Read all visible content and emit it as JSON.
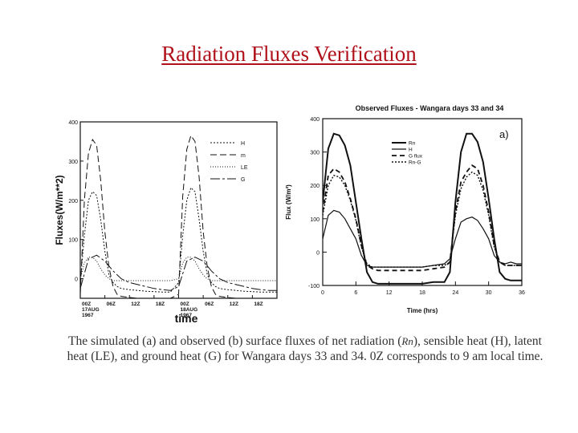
{
  "slide": {
    "title": "Radiation Fluxes Verification",
    "caption_part1": "The simulated (a) and observed (b) surface fluxes of net radiation (",
    "caption_rn": "Rn",
    "caption_part2": "), sensible heat (H), latent heat (LE), and ground heat (G) for Wangara days 33 and 34. 0Z corresponds to 9 am local time."
  },
  "colors": {
    "title": "#b0101a",
    "ink": "#111111",
    "caption": "#333333"
  },
  "chart_data": [
    {
      "type": "line",
      "title": "",
      "ylabel": "Fluxes(W/m**2)",
      "xlabel": "time",
      "ylim": [
        -50,
        400
      ],
      "xlim": [
        0,
        48
      ],
      "yticks": [
        "400",
        "300",
        "200",
        "100",
        "0"
      ],
      "ytick_values": [
        400,
        300,
        200,
        100,
        0
      ],
      "xticks": [
        {
          "x": 0,
          "lines": [
            "00Z",
            "17AUG",
            "1967"
          ]
        },
        {
          "x": 6,
          "lines": [
            "06Z"
          ]
        },
        {
          "x": 12,
          "lines": [
            "12Z"
          ]
        },
        {
          "x": 18,
          "lines": [
            "18Z"
          ]
        },
        {
          "x": 24,
          "lines": [
            "00Z",
            "18AUG",
            "1967"
          ]
        },
        {
          "x": 30,
          "lines": [
            "06Z"
          ]
        },
        {
          "x": 36,
          "lines": [
            "12Z"
          ]
        },
        {
          "x": 42,
          "lines": [
            "18Z"
          ]
        }
      ],
      "legend": "top-right",
      "grid": false,
      "series": [
        {
          "name": "H",
          "dash": "2,2",
          "x": [
            0,
            1,
            2,
            3,
            4,
            5,
            6,
            7,
            8,
            9,
            10,
            12,
            14,
            16,
            18,
            20,
            22,
            24,
            25,
            26,
            27,
            28,
            29,
            30,
            31,
            32,
            33,
            34,
            36,
            38,
            40,
            42,
            44,
            46,
            48
          ],
          "y": [
            -10,
            110,
            200,
            222,
            212,
            150,
            70,
            10,
            -10,
            -20,
            -25,
            -28,
            -30,
            -32,
            -33,
            -34,
            -34,
            -10,
            110,
            200,
            232,
            222,
            152,
            70,
            10,
            -10,
            -20,
            -25,
            -28,
            -30,
            -32,
            -33,
            -34,
            -34,
            -34
          ]
        },
        {
          "name": "m",
          "dash": "8,4",
          "x": [
            0,
            1,
            2,
            3,
            4,
            5,
            6,
            7,
            8,
            9,
            10,
            12,
            14,
            16,
            18,
            20,
            22,
            24,
            25,
            26,
            27,
            28,
            29,
            30,
            31,
            32,
            33,
            34,
            36,
            38,
            40,
            42,
            44,
            46,
            48
          ],
          "y": [
            -40,
            200,
            320,
            355,
            340,
            250,
            120,
            30,
            -20,
            -40,
            -45,
            -48,
            -50,
            -50,
            -50,
            -50,
            -50,
            -40,
            210,
            330,
            365,
            350,
            260,
            120,
            30,
            -20,
            -40,
            -45,
            -48,
            -50,
            -50,
            -50,
            -50,
            -50,
            -50
          ]
        },
        {
          "name": "LE",
          "dash": "1,2",
          "x": [
            0,
            1,
            2,
            3,
            4,
            5,
            6,
            7,
            8,
            9,
            10,
            12,
            14,
            16,
            18,
            20,
            22,
            24,
            25,
            26,
            27,
            28,
            29,
            30,
            31,
            32,
            33,
            34,
            36,
            38,
            40,
            42,
            44,
            46,
            48
          ],
          "y": [
            0,
            40,
            55,
            55,
            45,
            25,
            10,
            0,
            -5,
            -5,
            -5,
            -5,
            -5,
            -5,
            -5,
            -5,
            -5,
            0,
            40,
            55,
            55,
            45,
            25,
            10,
            0,
            -5,
            -5,
            -5,
            -5,
            -5,
            -5,
            -5,
            -5,
            -5,
            -5
          ]
        },
        {
          "name": "G",
          "dash": "12,3,3,3",
          "x": [
            0,
            2,
            4,
            6,
            8,
            10,
            12,
            14,
            16,
            18,
            20,
            22,
            24,
            26,
            28,
            30,
            32,
            34,
            36,
            38,
            40,
            42,
            44,
            46,
            48
          ],
          "y": [
            -25,
            50,
            60,
            45,
            20,
            0,
            -10,
            -15,
            -20,
            -25,
            -28,
            -30,
            -20,
            45,
            55,
            45,
            20,
            0,
            -10,
            -15,
            -20,
            -25,
            -28,
            -30,
            -30
          ]
        }
      ]
    },
    {
      "type": "line",
      "title": "Observed Fluxes - Wangara days 33 and 34",
      "ylabel": "Flux (W/m²)",
      "xlabel": "Time (hrs)",
      "xlim": [
        0,
        36
      ],
      "ylim": [
        -100,
        400
      ],
      "xticks": [
        0,
        6,
        12,
        18,
        24,
        30,
        36
      ],
      "yticks": [
        400,
        300,
        200,
        100,
        0,
        -100
      ],
      "panel_label": "a)",
      "legend": "top-left",
      "grid": false,
      "series": [
        {
          "name": "Rn",
          "dash": "",
          "x": [
            0,
            1,
            2,
            3,
            4,
            5,
            6,
            7,
            8,
            9,
            10,
            12,
            14,
            16,
            18,
            20,
            22,
            23,
            24,
            25,
            26,
            27,
            28,
            29,
            30,
            31,
            32,
            33,
            34,
            35,
            36
          ],
          "y": [
            150,
            310,
            355,
            350,
            320,
            260,
            150,
            40,
            -60,
            -90,
            -95,
            -95,
            -95,
            -95,
            -95,
            -90,
            -90,
            -60,
            150,
            300,
            355,
            355,
            330,
            270,
            160,
            40,
            -60,
            -80,
            -85,
            -85,
            -85
          ]
        },
        {
          "name": "H",
          "dash": "",
          "x": [
            0,
            1,
            2,
            3,
            4,
            5,
            6,
            7,
            8,
            9,
            10,
            12,
            14,
            16,
            18,
            20,
            22,
            23,
            24,
            25,
            26,
            27,
            28,
            29,
            30,
            31,
            32,
            33,
            34,
            35,
            36
          ],
          "y": [
            40,
            110,
            125,
            120,
            100,
            70,
            40,
            -10,
            -40,
            -45,
            -45,
            -45,
            -45,
            -45,
            -45,
            -40,
            -35,
            -20,
            40,
            90,
            100,
            105,
            95,
            70,
            40,
            -10,
            -30,
            -35,
            -30,
            -35,
            -35
          ]
        },
        {
          "name": "G flux",
          "dash": "6,4",
          "x": [
            0,
            1,
            2,
            3,
            4,
            5,
            6,
            7,
            8,
            9,
            10,
            12,
            14,
            16,
            18,
            20,
            22,
            23,
            24,
            25,
            26,
            27,
            28,
            29,
            30,
            31,
            32,
            33,
            34,
            35,
            36
          ],
          "y": [
            120,
            230,
            250,
            240,
            210,
            160,
            100,
            20,
            -40,
            -50,
            -55,
            -55,
            -55,
            -55,
            -55,
            -50,
            -45,
            -30,
            120,
            210,
            240,
            260,
            250,
            200,
            120,
            20,
            -30,
            -40,
            -40,
            -40,
            -40
          ]
        },
        {
          "name": "Rn-G",
          "dash": "2,2",
          "x": [
            0,
            1,
            2,
            3,
            4,
            5,
            6,
            7,
            8,
            9,
            10,
            12,
            14,
            16,
            18,
            20,
            22,
            23,
            24,
            25,
            26,
            27,
            28,
            29,
            30,
            31,
            32,
            33,
            34,
            35,
            36
          ],
          "y": [
            110,
            200,
            230,
            225,
            200,
            155,
            95,
            15,
            -35,
            -45,
            -45,
            -45,
            -45,
            -45,
            -45,
            -40,
            -40,
            -30,
            110,
            190,
            225,
            240,
            230,
            185,
            110,
            15,
            -30,
            -40,
            -40,
            -40,
            -40
          ]
        }
      ]
    }
  ]
}
